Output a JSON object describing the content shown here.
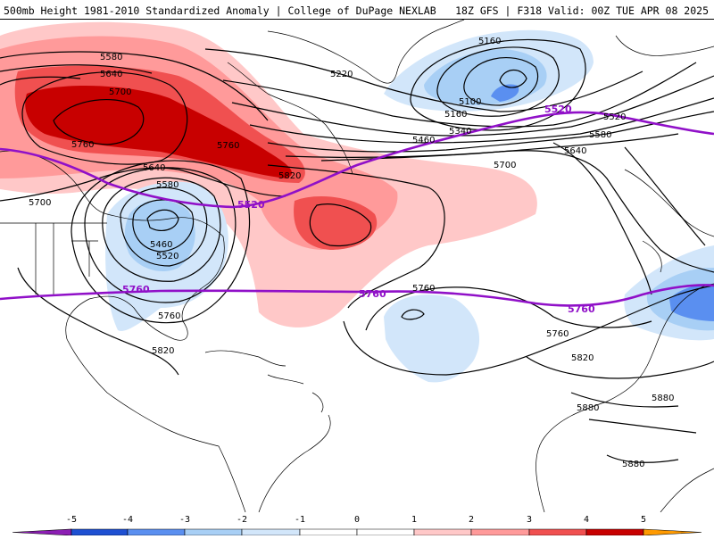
{
  "header": {
    "title_left": "500mb Height 1981-2010 Standardized Anomaly | College of DuPage NEXLAB",
    "title_right": "18Z GFS | F318 Valid: 00Z TUE APR 08 2025"
  },
  "colors": {
    "pos1": "#ffc8c8",
    "pos2": "#ff9a9a",
    "pos3": "#f05050",
    "pos4": "#c80000",
    "pos5": "#ff9a00",
    "neg1": "#d2e6fa",
    "neg2": "#a8cff5",
    "neg3": "#5a8ff0",
    "neg4": "#1e50d2",
    "neg5": "#8c1eb4",
    "height_contour": "#000000",
    "highlight_contour": "#9010c8",
    "coastline": "#000000"
  },
  "contour_labels": [
    {
      "id": "c5580a",
      "text": "5580"
    },
    {
      "id": "c5640a",
      "text": "5640"
    },
    {
      "id": "c5700a",
      "text": "5700"
    },
    {
      "id": "c5760a",
      "text": "5760"
    },
    {
      "id": "c5760b",
      "text": "5760"
    },
    {
      "id": "c5640b",
      "text": "5640"
    },
    {
      "id": "c5580b",
      "text": "5580"
    },
    {
      "id": "c5700b",
      "text": "5700"
    },
    {
      "id": "c5460a",
      "text": "5460"
    },
    {
      "id": "c5520a",
      "text": "5520"
    },
    {
      "id": "c5760c",
      "text": "5760"
    },
    {
      "id": "c5820a",
      "text": "5820"
    },
    {
      "id": "c5820b",
      "text": "5820"
    },
    {
      "id": "c5160a",
      "text": "5160"
    },
    {
      "id": "c5100a",
      "text": "5100"
    },
    {
      "id": "c5160b",
      "text": "5160"
    },
    {
      "id": "c5220a",
      "text": "5220"
    },
    {
      "id": "c5340a",
      "text": "5340"
    },
    {
      "id": "c5460b",
      "text": "5460"
    },
    {
      "id": "c5520b",
      "text": "5520"
    },
    {
      "id": "c5580c",
      "text": "5580"
    },
    {
      "id": "c5640c",
      "text": "5640"
    },
    {
      "id": "c5700c",
      "text": "5700"
    },
    {
      "id": "c5760d",
      "text": "5760"
    },
    {
      "id": "c5760e",
      "text": "5760"
    },
    {
      "id": "c5820c",
      "text": "5820"
    },
    {
      "id": "c5880a",
      "text": "5880"
    },
    {
      "id": "c5880b",
      "text": "5880"
    },
    {
      "id": "c5880c",
      "text": "5880"
    }
  ],
  "purple_labels": [
    {
      "id": "p5520a",
      "text": "5520"
    },
    {
      "id": "p5520b",
      "text": "5520"
    },
    {
      "id": "p5760a",
      "text": "5760"
    },
    {
      "id": "p5760b",
      "text": "5760"
    },
    {
      "id": "p5760c",
      "text": "5760"
    }
  ],
  "colorbar": {
    "labels": [
      "-5",
      "-4",
      "-3",
      "-2",
      "-1",
      "0",
      "1",
      "2",
      "3",
      "4",
      "5"
    ],
    "bins": [
      "neg5",
      "neg4",
      "neg3",
      "neg2",
      "neg1",
      "white",
      "white",
      "pos1",
      "pos2",
      "pos3",
      "pos4",
      "pos5"
    ]
  }
}
